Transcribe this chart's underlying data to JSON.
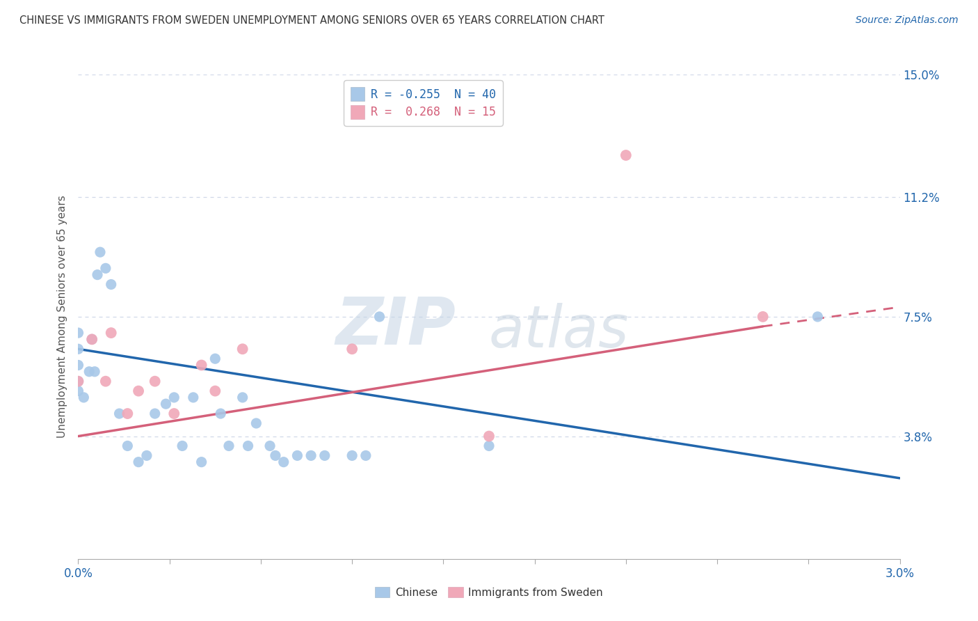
{
  "title": "CHINESE VS IMMIGRANTS FROM SWEDEN UNEMPLOYMENT AMONG SENIORS OVER 65 YEARS CORRELATION CHART",
  "source": "Source: ZipAtlas.com",
  "ylabel": "Unemployment Among Seniors over 65 years",
  "xmin": 0.0,
  "xmax": 3.0,
  "ymin": 0.0,
  "ymax": 15.0,
  "yticks": [
    3.8,
    7.5,
    11.2,
    15.0
  ],
  "ytick_labels": [
    "3.8%",
    "7.5%",
    "11.2%",
    "15.0%"
  ],
  "legend1_label": "R = -0.255  N = 40",
  "legend2_label": "R =  0.268  N = 15",
  "watermark_zip": "ZIP",
  "watermark_atlas": "atlas",
  "blue_color": "#a8c8e8",
  "blue_line_color": "#2166ac",
  "pink_color": "#f0a8b8",
  "pink_line_color": "#d4607a",
  "chinese_x": [
    0.0,
    0.0,
    0.0,
    0.0,
    0.0,
    0.02,
    0.04,
    0.05,
    0.06,
    0.07,
    0.08,
    0.1,
    0.12,
    0.15,
    0.18,
    0.22,
    0.25,
    0.28,
    0.32,
    0.35,
    0.38,
    0.42,
    0.45,
    0.5,
    0.52,
    0.55,
    0.6,
    0.62,
    0.65,
    0.7,
    0.72,
    0.75,
    0.8,
    0.85,
    0.9,
    1.0,
    1.05,
    1.1,
    1.5,
    2.7
  ],
  "chinese_y": [
    5.2,
    5.5,
    6.0,
    6.5,
    7.0,
    5.0,
    5.8,
    6.8,
    5.8,
    8.8,
    9.5,
    9.0,
    8.5,
    4.5,
    3.5,
    3.0,
    3.2,
    4.5,
    4.8,
    5.0,
    3.5,
    5.0,
    3.0,
    6.2,
    4.5,
    3.5,
    5.0,
    3.5,
    4.2,
    3.5,
    3.2,
    3.0,
    3.2,
    3.2,
    3.2,
    3.2,
    3.2,
    7.5,
    3.5,
    7.5
  ],
  "sweden_x": [
    0.0,
    0.05,
    0.1,
    0.12,
    0.18,
    0.22,
    0.28,
    0.35,
    0.45,
    0.5,
    0.6,
    1.0,
    1.5,
    2.0,
    2.5
  ],
  "sweden_y": [
    5.5,
    6.8,
    5.5,
    7.0,
    4.5,
    5.2,
    5.5,
    4.5,
    6.0,
    5.2,
    6.5,
    6.5,
    3.8,
    12.5,
    7.5
  ],
  "blue_trendline_x0": 0.0,
  "blue_trendline_x1": 3.0,
  "blue_trendline_y0": 6.5,
  "blue_trendline_y1": 2.5,
  "pink_solid_x0": 0.0,
  "pink_solid_x1": 2.5,
  "pink_solid_y0": 3.8,
  "pink_solid_y1": 7.2,
  "pink_dash_x0": 2.5,
  "pink_dash_x1": 3.0,
  "pink_dash_y0": 7.2,
  "pink_dash_y1": 7.8,
  "background_color": "#ffffff",
  "grid_color": "#d0d8e8"
}
